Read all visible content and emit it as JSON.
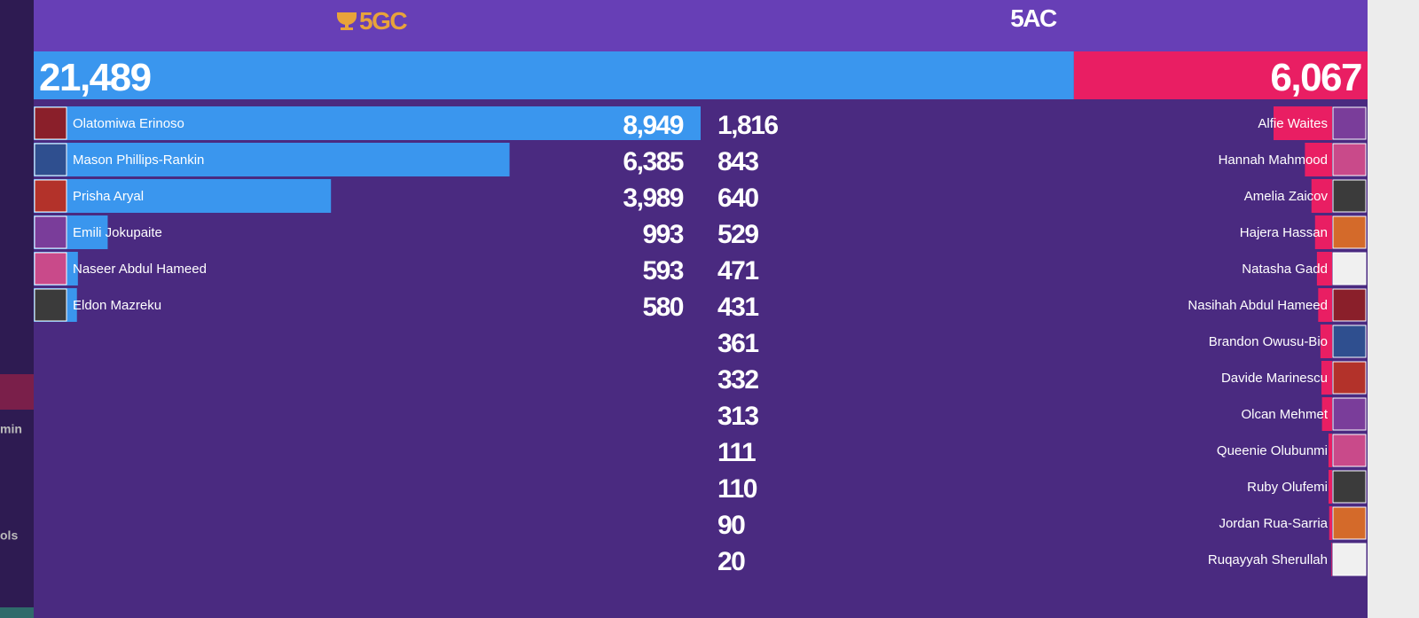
{
  "sidebar": [
    "min",
    "ols"
  ],
  "header": {
    "home_team": "5GC",
    "away_team": "5AC"
  },
  "totals": {
    "home": {
      "value": 21489,
      "label": "21,489"
    },
    "away": {
      "value": 6067,
      "label": "6,067"
    }
  },
  "home_players": [
    {
      "name": "Olatomiwa Erinoso",
      "score": {
        "value": 8949,
        "label": "8,949"
      }
    },
    {
      "name": "Mason Phillips-Rankin",
      "score": {
        "value": 6385,
        "label": "6,385"
      }
    },
    {
      "name": "Prisha Aryal",
      "score": {
        "value": 3989,
        "label": "3,989"
      }
    },
    {
      "name": "Emili Jokupaite",
      "score": 993
    },
    {
      "name": "Naseer Abdul Hameed",
      "score": 593
    },
    {
      "name": "Eldon Mazreku",
      "score": 580
    }
  ],
  "away_players": [
    {
      "name": "Alfie Waites",
      "score": {
        "value": 1816,
        "label": "1,816"
      }
    },
    {
      "name": "Hannah Mahmood",
      "score": 843
    },
    {
      "name": "Amelia Zaicov",
      "score": 640
    },
    {
      "name": "Hajera Hassan",
      "score": 529
    },
    {
      "name": "Natasha Gadd",
      "score": 471
    },
    {
      "name": "Nasihah Abdul Hameed",
      "score": 431
    },
    {
      "name": "Brandon Owusu-Bio",
      "score": 361
    },
    {
      "name": "Davide Marinescu",
      "score": 332
    },
    {
      "name": "Olcan Mehmet",
      "score": 313
    },
    {
      "name": "Queenie Olubunmi",
      "score": 111
    },
    {
      "name": "Ruby Olufemi",
      "score": 110
    },
    {
      "name": "Jordan Rua-Sarria",
      "score": 90
    },
    {
      "name": "Ruqayyah Sherullah",
      "score": 20
    }
  ]
}
